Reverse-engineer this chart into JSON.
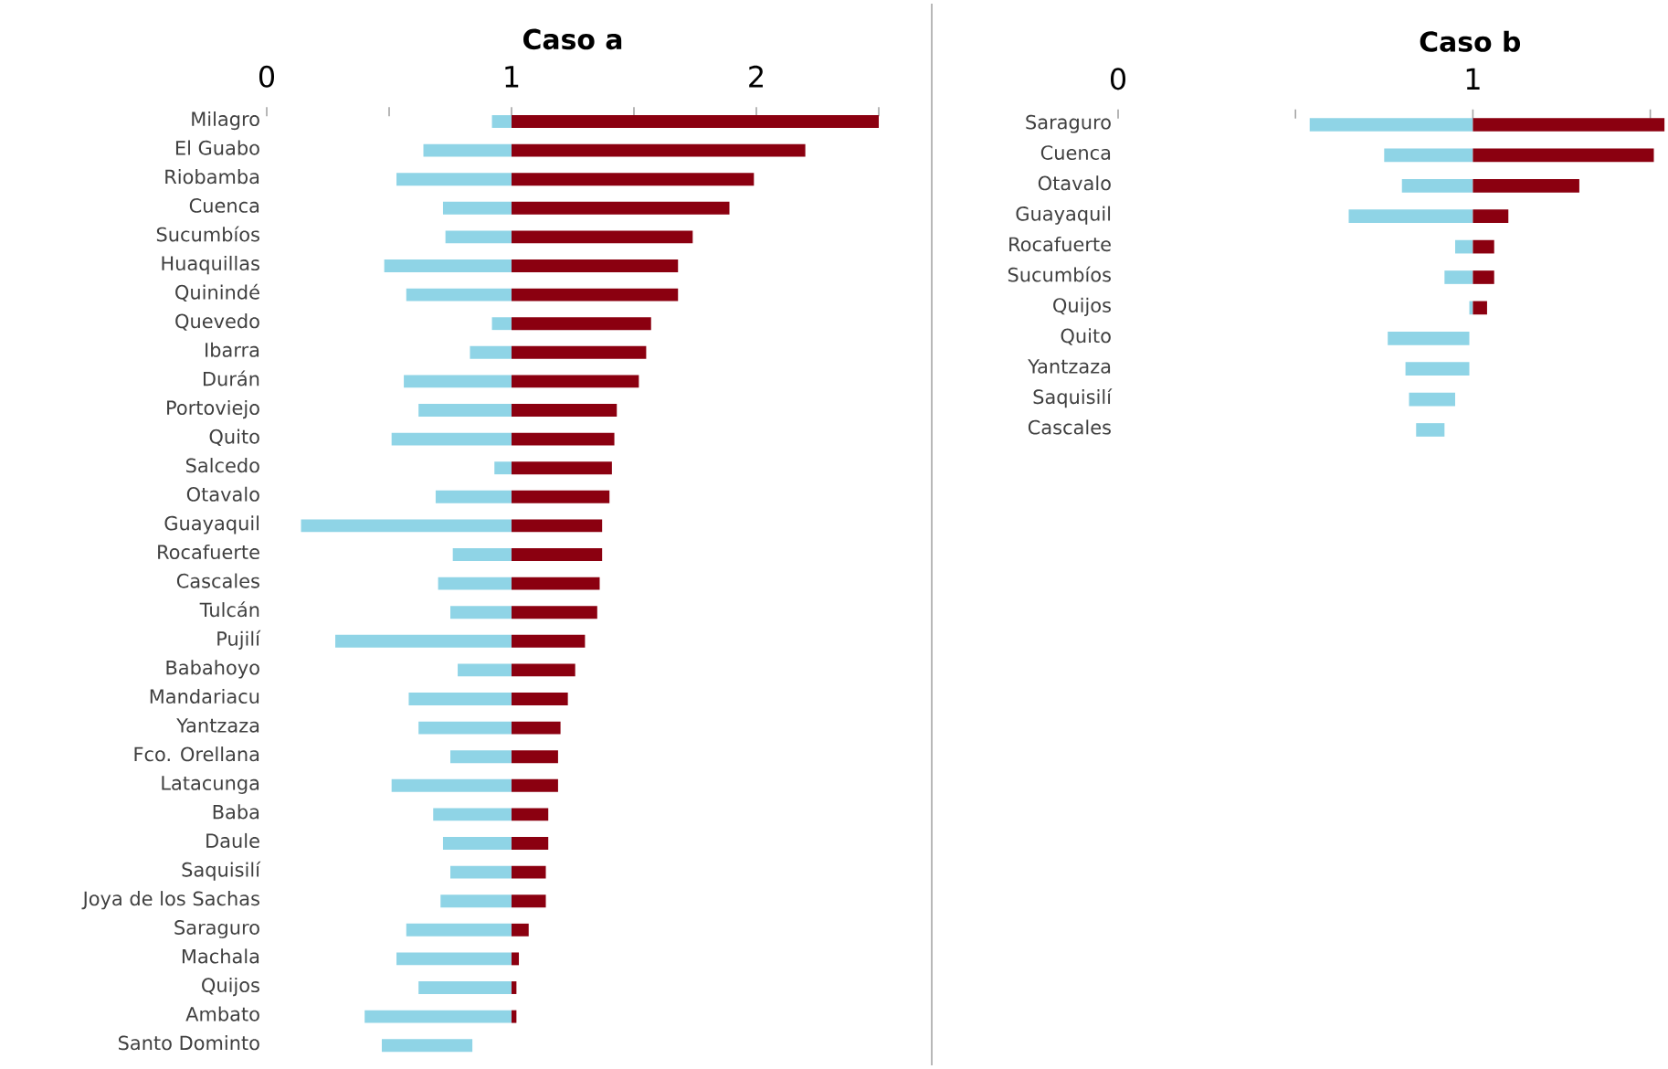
{
  "chart_data": [
    {
      "type": "bar",
      "orientation": "horizontal",
      "title": "Caso a",
      "categories": [
        "Milagro",
        "El Guabo",
        "Riobamba",
        "Cuenca",
        "Sucumbíos",
        "Huaquillas",
        "Quinindé",
        "Quevedo",
        "Ibarra",
        "Durán",
        "Portoviejo",
        "Quito",
        "Salcedo",
        "Otavalo",
        "Guayaquil",
        "Rocafuerte",
        "Cascales",
        "Tulcán",
        "Pujilí",
        "Babahoyo",
        "Mandariacu",
        "Yantzaza",
        "Fco. Orellana",
        "Latacunga",
        "Baba",
        "Daule",
        "Saquisilí",
        "Joya de los Sachas",
        "Saraguro",
        "Machala",
        "Quijos",
        "Ambato",
        "Santo Dominto"
      ],
      "series": [
        {
          "color": "#8fd4e6",
          "base": [
            0.92,
            0.64,
            0.53,
            0.72,
            0.73,
            0.48,
            0.57,
            0.92,
            0.83,
            0.56,
            0.62,
            0.51,
            0.93,
            0.69,
            0.14,
            0.76,
            0.7,
            0.75,
            0.28,
            0.78,
            0.58,
            0.62,
            0.75,
            0.51,
            0.68,
            0.72,
            0.75,
            0.71,
            0.57,
            0.53,
            0.62,
            0.4,
            0.47
          ],
          "values": [
            0.08,
            0.36,
            0.47,
            0.28,
            0.27,
            0.52,
            0.43,
            0.08,
            0.17,
            0.44,
            0.38,
            0.49,
            0.07,
            0.31,
            0.86,
            0.24,
            0.3,
            0.25,
            0.72,
            0.22,
            0.42,
            0.38,
            0.25,
            0.49,
            0.32,
            0.28,
            0.25,
            0.29,
            0.43,
            0.47,
            0.38,
            0.6,
            0.37
          ]
        },
        {
          "color": "#8b0010",
          "base": [
            1,
            1,
            1,
            1,
            1,
            1,
            1,
            1,
            1,
            1,
            1,
            1,
            1,
            1,
            1,
            1,
            1,
            1,
            1,
            1,
            1,
            1,
            1,
            1,
            1,
            1,
            1,
            1,
            1,
            1,
            1,
            1,
            null
          ],
          "values": [
            1.5,
            1.2,
            0.99,
            0.89,
            0.74,
            0.68,
            0.68,
            0.57,
            0.55,
            0.52,
            0.43,
            0.42,
            0.41,
            0.4,
            0.37,
            0.37,
            0.36,
            0.35,
            0.3,
            0.26,
            0.23,
            0.2,
            0.19,
            0.19,
            0.15,
            0.15,
            0.14,
            0.14,
            0.07,
            0.03,
            0.02,
            0.02,
            null
          ]
        }
      ],
      "xlim": [
        0,
        2.5
      ],
      "xticks": [
        0,
        {
          "value": 0.5,
          "label": null
        },
        1,
        {
          "value": 1.5,
          "label": null
        },
        2,
        {
          "value": 2.5,
          "label": null
        }
      ]
    },
    {
      "type": "bar",
      "orientation": "horizontal",
      "title": "Caso b",
      "categories": [
        "Saraguro",
        "Cuenca",
        "Otavalo",
        "Guayaquil",
        "Rocafuerte",
        "Sucumbíos",
        "Quijos",
        "Quito",
        "Yantzaza",
        "Saquisilí",
        "Cascales"
      ],
      "series": [
        {
          "color": "#8fd4e6",
          "base": [
            0.54,
            0.75,
            0.8,
            0.65,
            0.95,
            0.92,
            0.99,
            0.76,
            0.81,
            0.82,
            0.84
          ],
          "values": [
            0.46,
            0.25,
            0.2,
            0.35,
            0.05,
            0.08,
            0.01,
            0.23,
            0.18,
            0.13,
            0.08
          ]
        },
        {
          "color": "#8b0010",
          "base": [
            1,
            1,
            1,
            1,
            1,
            1,
            1,
            null,
            null,
            null,
            null
          ],
          "values": [
            0.54,
            0.51,
            0.3,
            0.1,
            0.06,
            0.06,
            0.04,
            null,
            null,
            null,
            null
          ]
        }
      ],
      "xlim": [
        0,
        1.55
      ],
      "xticks": [
        0,
        {
          "value": 0.5,
          "label": null
        },
        1,
        {
          "value": 1.5,
          "label": null
        }
      ]
    }
  ]
}
